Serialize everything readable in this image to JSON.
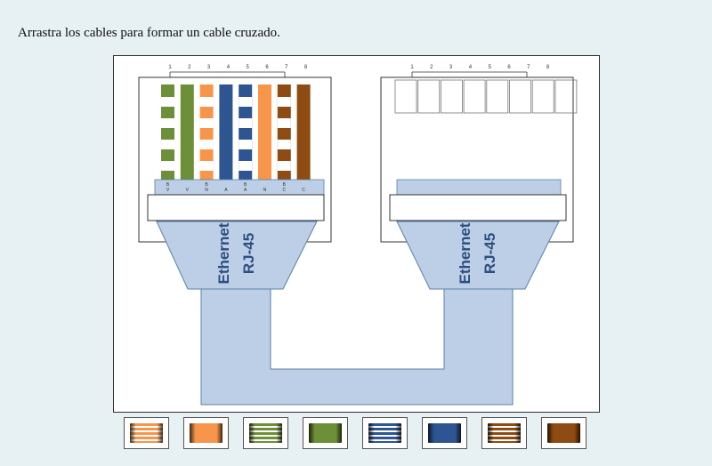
{
  "instruction": "Arrastra los cables para formar un cable cruzado.",
  "pin_numbers": [
    "1",
    "2",
    "3",
    "4",
    "5",
    "6",
    "7",
    "8"
  ],
  "left_wire_codes": [
    "B V",
    "V",
    "B N",
    "A",
    "B A",
    "N",
    "B C",
    "C"
  ],
  "connector_labels": {
    "line1": "Ethernet",
    "line2": "RJ-45"
  },
  "left_wires": [
    {
      "base": "#6d8f37",
      "striped": true
    },
    {
      "base": "#6d8f37",
      "striped": false
    },
    {
      "base": "#f7964a",
      "striped": true
    },
    {
      "base": "#2d5592",
      "striped": false
    },
    {
      "base": "#2d5592",
      "striped": true
    },
    {
      "base": "#f7964a",
      "striped": false
    },
    {
      "base": "#8e4b12",
      "striped": true
    },
    {
      "base": "#8e4b12",
      "striped": false
    }
  ],
  "palette": [
    {
      "name": "orange-white",
      "base": "#f7964a",
      "striped": true
    },
    {
      "name": "orange",
      "base": "#f7964a",
      "striped": false
    },
    {
      "name": "green-white",
      "base": "#6d8f37",
      "striped": true
    },
    {
      "name": "green",
      "base": "#6d8f37",
      "striped": false
    },
    {
      "name": "blue-white",
      "base": "#2d5592",
      "striped": true
    },
    {
      "name": "blue",
      "base": "#2d5592",
      "striped": false
    },
    {
      "name": "brown-white",
      "base": "#8e4b12",
      "striped": true
    },
    {
      "name": "brown",
      "base": "#8e4b12",
      "striped": false
    }
  ],
  "colors": {
    "cable": "#bccfe6",
    "cable_stroke": "#5b7fa9",
    "label": "#2c4e7e"
  }
}
